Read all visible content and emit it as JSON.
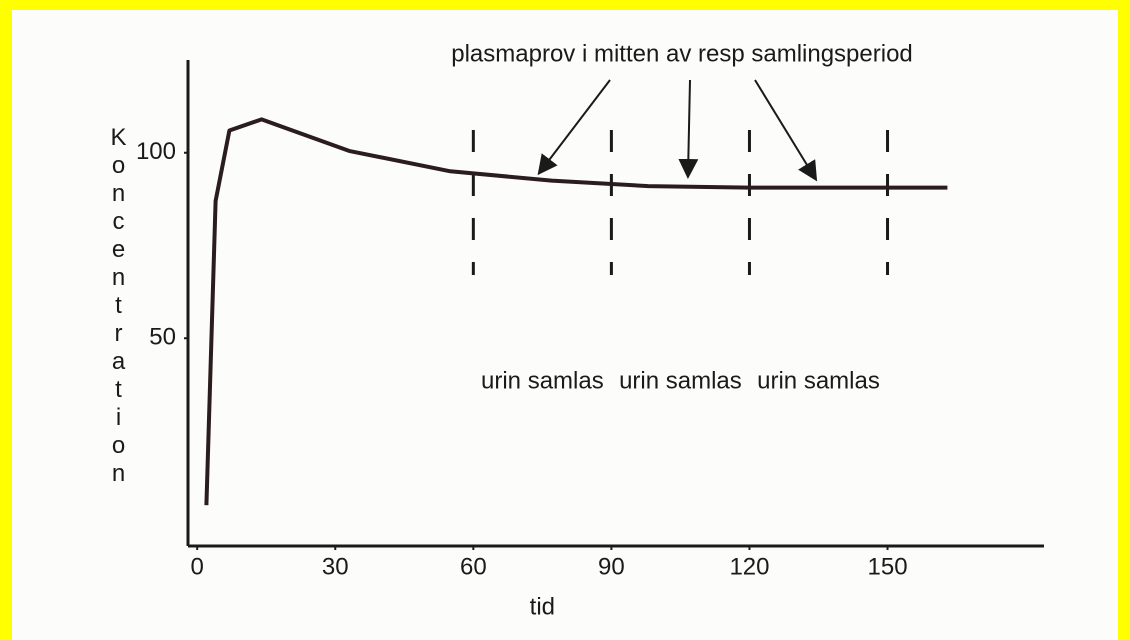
{
  "chart_data": {
    "type": "line",
    "title": "plasmaprov i mitten av resp samlingsperiod",
    "y_label": "Koncentration",
    "x_label": "tid",
    "x": [
      2,
      4,
      7,
      14,
      33,
      55,
      77,
      98,
      120,
      163
    ],
    "series": [
      {
        "name": null,
        "color": "#2b1d1d",
        "values": [
          5,
          87,
          106,
          109,
          100.5,
          95,
          92.5,
          91,
          90.6,
          90.6
        ]
      }
    ],
    "xlim": [
      -2,
      184
    ],
    "ylim": [
      -6,
      125
    ],
    "xticks": [
      0,
      30,
      60,
      90,
      120,
      150
    ],
    "yticks": [
      50,
      100
    ],
    "vlines": [
      60,
      90,
      120,
      150
    ],
    "annotations": [
      "urin samlas",
      "urin samlas",
      "urin samlas"
    ],
    "grid": false
  }
}
